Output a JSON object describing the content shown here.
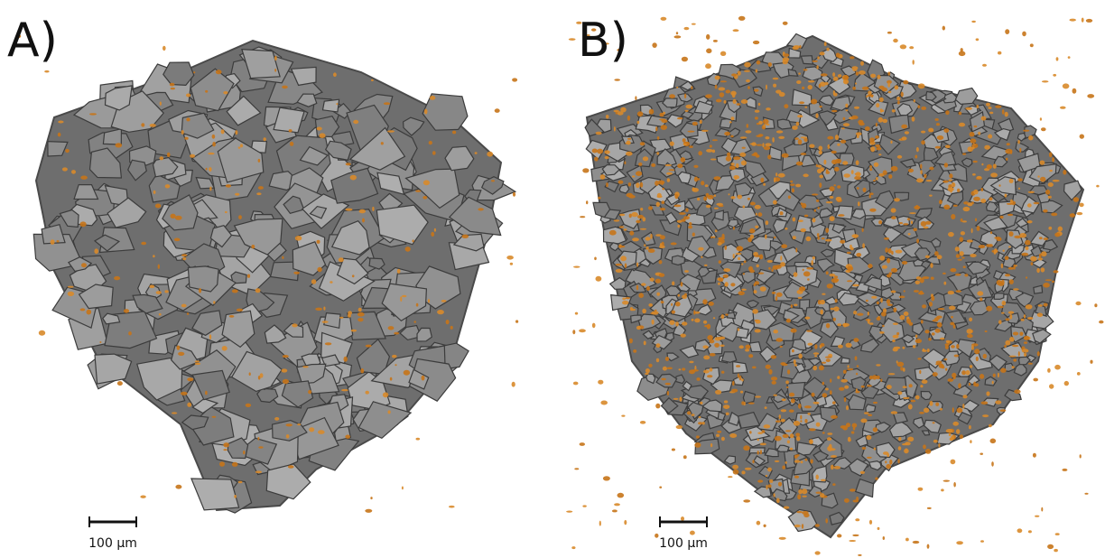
{
  "panels": [
    {
      "label": "A)",
      "scale_bar": "100 µm"
    },
    {
      "label": "B)",
      "scale_bar": "100 µm"
    }
  ]
}
